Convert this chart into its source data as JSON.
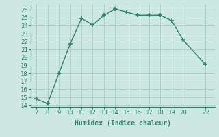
{
  "x": [
    7,
    8,
    9,
    10,
    11,
    12,
    13,
    14,
    15,
    16,
    17,
    18,
    19,
    20,
    22
  ],
  "y": [
    14.8,
    14.2,
    18.0,
    21.7,
    24.9,
    24.1,
    25.3,
    26.1,
    25.7,
    25.3,
    25.3,
    25.3,
    24.6,
    22.2,
    19.1
  ],
  "line_color": "#2e7d6e",
  "marker": "+",
  "marker_size": 4,
  "marker_linewidth": 1.2,
  "line_width": 1.0,
  "linestyle": "-",
  "xlabel": "Humidex (Indice chaleur)",
  "xlim": [
    6.5,
    22.8
  ],
  "ylim": [
    13.8,
    26.7
  ],
  "yticks": [
    14,
    15,
    16,
    17,
    18,
    19,
    20,
    21,
    22,
    23,
    24,
    25,
    26
  ],
  "xticks": [
    7,
    8,
    9,
    10,
    11,
    12,
    13,
    14,
    15,
    16,
    17,
    18,
    19,
    20,
    22
  ],
  "bg_color": "#cce8e0",
  "grid_color": "#aaccc4",
  "label_fontsize": 7,
  "tick_fontsize": 6.5
}
